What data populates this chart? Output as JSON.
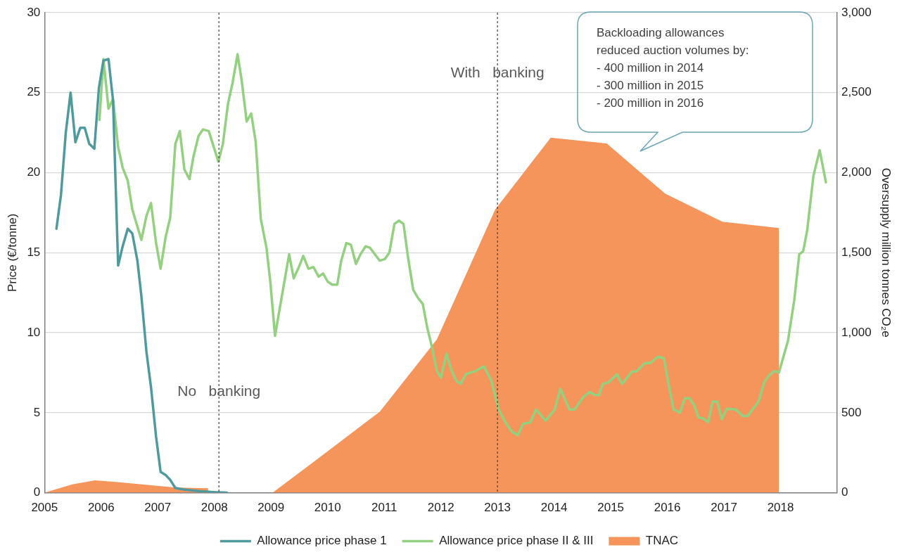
{
  "chart_data": {
    "type": "line",
    "y2label": "Oversupply million tonnes CO₂e",
    "ylabel": "Price (€/tonne)",
    "xlim": [
      2005,
      2019
    ],
    "xticks": [
      2005,
      2006,
      2007,
      2008,
      2009,
      2010,
      2011,
      2012,
      2013,
      2014,
      2015,
      2016,
      2017,
      2018
    ],
    "ylim": [
      0,
      30
    ],
    "yticks": [
      0,
      5,
      10,
      15,
      20,
      25,
      30
    ],
    "y2lim": [
      0,
      3000
    ],
    "y2ticks": [
      0,
      500,
      {
        "value": 1000,
        "label": "1,000"
      },
      {
        "value": 1500,
        "label": "1,500"
      },
      {
        "value": 2000,
        "label": "2,000"
      },
      {
        "value": 2500,
        "label": "2,500"
      },
      {
        "value": 3000,
        "label": "3,000"
      }
    ],
    "grid": "y",
    "legend": "bottom",
    "marker": "none",
    "series": [
      {
        "name": "TNAC",
        "type": "area",
        "axis": "y2",
        "color": "#f5955b",
        "x": [
          2005,
          2005.49,
          2005.89,
          2006.29,
          2006.92,
          2007.29,
          2007.89,
          2008.5,
          2009.03,
          2009.86,
          2010.92,
          2011.93,
          2012.96,
          2013.94,
          2014.93,
          2015.96,
          2016.97,
          2017.97
        ],
        "values": [
          0,
          52,
          77,
          66,
          46,
          33,
          28,
          null,
          0,
          221,
          506,
          958,
          1770,
          2219,
          2182,
          1869,
          1694,
          1654
        ]
      },
      {
        "name": "Allowance price phase 1",
        "type": "line",
        "color": "#4f9a9c",
        "x": [
          2005.21,
          2005.29,
          2005.375,
          2005.46,
          2005.545,
          2005.63,
          2005.71,
          2005.79,
          2005.88,
          2005.96,
          2006.04,
          2006.13,
          2006.21,
          2006.3,
          2006.38,
          2006.47,
          2006.55,
          2006.64,
          2006.71,
          2006.8,
          2006.88,
          2006.97,
          2007.05,
          2007.14,
          2007.22,
          2007.31,
          2007.45,
          2007.72,
          2007.98,
          2008.22
        ],
        "values": [
          16.5,
          18.6,
          22.5,
          25,
          21.9,
          22.8,
          22.8,
          21.8,
          21.5,
          25.3,
          27,
          27.1,
          24.5,
          14.2,
          15.4,
          16.5,
          16.2,
          14.5,
          12.3,
          8.8,
          6.6,
          3.5,
          1.3,
          1.1,
          0.8,
          0.3,
          0.2,
          0.1,
          0.04,
          0
        ]
      },
      {
        "name": "Allowance price phase II & III",
        "type": "line",
        "color": "#93d07f",
        "x": [
          2005.97,
          2006.04,
          2006.13,
          2006.21,
          2006.3,
          2006.38,
          2006.47,
          2006.55,
          2006.71,
          2006.8,
          2006.88,
          2006.97,
          2007.05,
          2007.14,
          2007.22,
          2007.31,
          2007.39,
          2007.47,
          2007.56,
          2007.63,
          2007.72,
          2007.8,
          2007.9,
          2008.07,
          2008.15,
          2008.24,
          2008.32,
          2008.41,
          2008.48,
          2008.57,
          2008.65,
          2008.73,
          2008.82,
          2008.92,
          2008.99,
          2009.07,
          2009.32,
          2009.4,
          2009.48,
          2009.57,
          2009.66,
          2009.75,
          2009.84,
          2009.92,
          2010,
          2010.08,
          2010.17,
          2010.24,
          2010.33,
          2010.41,
          2010.5,
          2010.58,
          2010.67,
          2010.75,
          2010.92,
          2011.01,
          2011.09,
          2011.18,
          2011.26,
          2011.34,
          2011.42,
          2011.51,
          2011.59,
          2011.68,
          2011.76,
          2011.85,
          2011.93,
          2012,
          2012.1,
          2012.18,
          2012.27,
          2012.35,
          2012.44,
          2012.52,
          2012.61,
          2012.76,
          2012.89,
          2013.02,
          2013.14,
          2013.26,
          2013.36,
          2013.45,
          2013.58,
          2013.68,
          2013.85,
          2014.01,
          2014.11,
          2014.27,
          2014.36,
          2014.52,
          2014.63,
          2014.72,
          2014.79,
          2014.86,
          2014.96,
          2015.11,
          2015.2,
          2015.37,
          2015.46,
          2015.6,
          2015.7,
          2015.83,
          2015.94,
          2016.02,
          2016.11,
          2016.22,
          2016.31,
          2016.39,
          2016.47,
          2016.55,
          2016.63,
          2016.72,
          2016.8,
          2016.88,
          2016.96,
          2017.05,
          2017.21,
          2017.33,
          2017.42,
          2017.61,
          2017.71,
          2017.79,
          2017.88,
          2017.97,
          2018.13,
          2018.24,
          2018.33,
          2018.4,
          2018.47,
          2018.58,
          2018.69,
          2018.8
        ],
        "values": [
          23.3,
          27.1,
          24,
          24.6,
          21.6,
          20.3,
          19.5,
          17.7,
          15.8,
          17.3,
          18.1,
          15.6,
          14,
          16,
          17.2,
          21.8,
          22.6,
          20.2,
          19.6,
          21,
          22.3,
          22.7,
          22.6,
          20.7,
          21.8,
          24.3,
          25.6,
          27.4,
          25.8,
          23.2,
          23.7,
          21.9,
          17.1,
          15.3,
          13.1,
          9.8,
          14.9,
          13.4,
          14,
          14.8,
          14,
          14.1,
          13.5,
          13.7,
          13.2,
          13,
          13,
          14.5,
          15.6,
          15.5,
          14.3,
          14.9,
          15.4,
          15.3,
          14.5,
          14.6,
          15,
          16.8,
          17,
          16.8,
          14.7,
          12.7,
          12.2,
          11.8,
          10.3,
          9,
          7.6,
          7.2,
          8.7,
          7.7,
          7,
          6.8,
          7.4,
          7.5,
          7.6,
          7.9,
          7,
          5.2,
          4.4,
          3.8,
          3.6,
          4.3,
          4.4,
          5.2,
          4.5,
          5.2,
          6.5,
          5.2,
          5.2,
          6,
          6.3,
          6.1,
          6.1,
          6.8,
          6.9,
          7.4,
          6.8,
          7.55,
          7.6,
          8.1,
          8.1,
          8.5,
          8.4,
          6.8,
          5.2,
          5,
          5.9,
          5.9,
          5.5,
          4.7,
          4.65,
          4.4,
          5.7,
          5.7,
          4.6,
          5.25,
          5.2,
          4.8,
          4.8,
          5.7,
          6.9,
          7.3,
          7.6,
          7.5,
          9.5,
          12,
          14.9,
          15.1,
          16.4,
          19.8,
          21.4,
          19.4
        ]
      }
    ],
    "ref_lines": [
      {
        "axis": "x",
        "value": 2008.08,
        "color": "#404040",
        "line_style": "dotted"
      },
      {
        "axis": "x",
        "value": 2013,
        "color": "#404040",
        "line_style": "dotted"
      }
    ],
    "annotations": [
      {
        "text": "No   banking",
        "x": 2008.08,
        "y": 6.3
      },
      {
        "text": "With   banking",
        "x": 2013,
        "y": 26.2
      },
      "Backloading allowances\nreduced auction volumes by:\n- 400 million in 2014\n- 300 million in 2015\n- 200 million in 2016"
    ]
  }
}
